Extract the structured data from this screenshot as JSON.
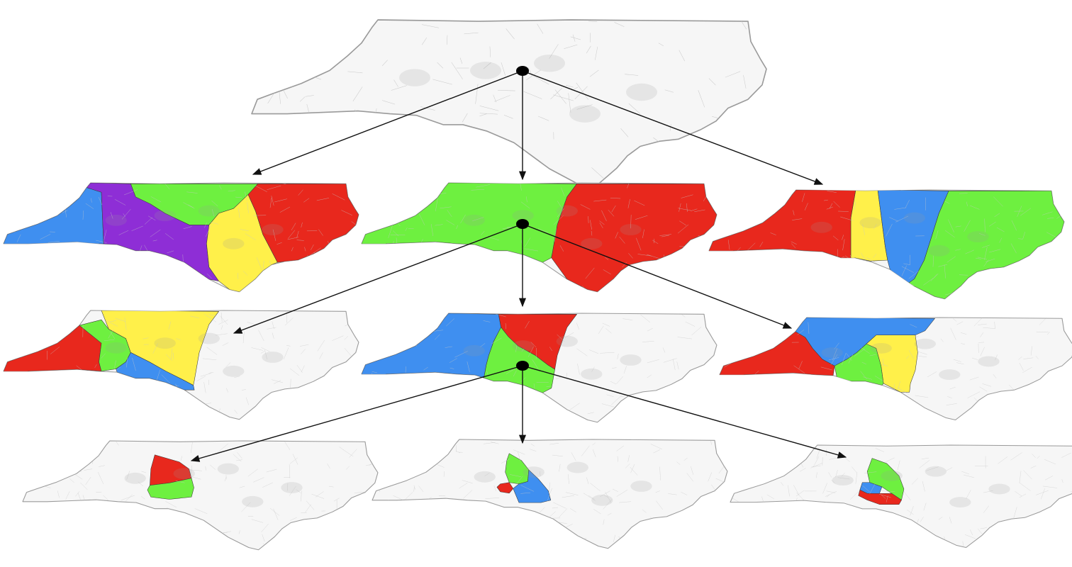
{
  "colors": {
    "red": "#e8281d",
    "green": "#6ef040",
    "blue": "#3f8ff0",
    "yellow": "#fff04a",
    "purple": "#8e2ed6",
    "blank": "#f6f6f6",
    "arrow": "#111111"
  },
  "tree": {
    "root": {
      "id": "root",
      "regions": []
    },
    "level1": [
      {
        "id": "split-a",
        "regions": [
          "blue",
          "purple",
          "green",
          "yellow",
          "red"
        ]
      },
      {
        "id": "split-b",
        "regions": [
          "green",
          "red"
        ],
        "expanded": true
      },
      {
        "id": "split-c",
        "regions": [
          "red",
          "yellow",
          "blue",
          "green"
        ]
      }
    ],
    "level2": [
      {
        "id": "split-b1",
        "regions": [
          "red",
          "green",
          "yellow",
          "blue"
        ]
      },
      {
        "id": "split-b2",
        "regions": [
          "blue",
          "red",
          "green"
        ],
        "expanded": true
      },
      {
        "id": "split-b3",
        "regions": [
          "red",
          "blue",
          "green",
          "yellow"
        ]
      }
    ],
    "level3": [
      {
        "id": "split-b2a",
        "regions": [
          "red",
          "green"
        ]
      },
      {
        "id": "split-b2b",
        "regions": [
          "green",
          "red",
          "blue"
        ]
      },
      {
        "id": "split-b2c",
        "regions": [
          "green",
          "blue",
          "red"
        ]
      }
    ]
  }
}
